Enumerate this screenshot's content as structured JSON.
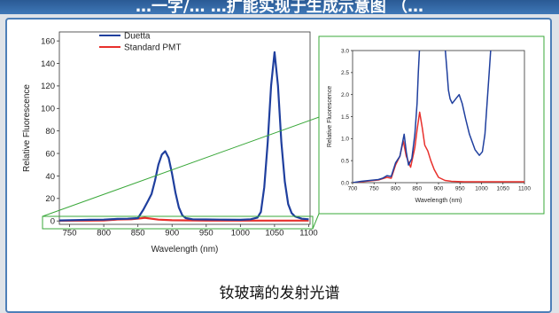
{
  "header": {
    "title_fragment": "…一字/…   …扩能实现于生成示意图 （…"
  },
  "caption": "钕玻璃的发射光谱",
  "chart_data": [
    {
      "type": "line",
      "xlabel": "Wavelength (nm)",
      "ylabel": "Relative Fluorescence",
      "xlim": [
        735,
        1102
      ],
      "ylim": [
        -3,
        168
      ],
      "x_ticks": [
        750,
        800,
        850,
        900,
        950,
        1000,
        1050,
        1100
      ],
      "y_ticks": [
        0,
        20,
        40,
        60,
        80,
        100,
        120,
        140,
        160
      ],
      "legend_position": "top-left",
      "series": [
        {
          "name": "Duetta",
          "color": "#1f3f9e",
          "x": [
            735,
            760,
            780,
            800,
            820,
            835,
            850,
            858,
            865,
            870,
            875,
            880,
            885,
            890,
            895,
            900,
            905,
            910,
            915,
            920,
            930,
            950,
            970,
            1000,
            1015,
            1025,
            1030,
            1035,
            1040,
            1045,
            1050,
            1055,
            1060,
            1065,
            1070,
            1075,
            1080,
            1090,
            1100
          ],
          "values": [
            0.5,
            0.8,
            1.0,
            1.2,
            1.8,
            2.0,
            2.5,
            10,
            18,
            24,
            36,
            50,
            59,
            62,
            56,
            42,
            25,
            12,
            5,
            2.5,
            1.5,
            1.3,
            1.2,
            1.0,
            1.5,
            3,
            8,
            30,
            70,
            120,
            150,
            120,
            70,
            35,
            15,
            7,
            4,
            2,
            1.5
          ]
        },
        {
          "name": "Standard PMT",
          "color": "#e8302c",
          "x": [
            735,
            780,
            800,
            815,
            820,
            840,
            855,
            860,
            870,
            880,
            900,
            950,
            1000,
            1100
          ],
          "values": [
            0.2,
            0.3,
            0.5,
            1.0,
            1.3,
            1.5,
            2.4,
            2.8,
            2.0,
            1.2,
            0.6,
            0.3,
            0.3,
            0.3
          ]
        }
      ]
    },
    {
      "type": "line",
      "xlabel": "Wavelength (nm)",
      "ylabel": "Relative Fluorescence",
      "xlim": [
        700,
        1100
      ],
      "ylim": [
        0,
        3.0
      ],
      "x_ticks": [
        700,
        750,
        800,
        850,
        900,
        950,
        1000,
        1050,
        1100
      ],
      "y_ticks": [
        0.0,
        0.5,
        1.0,
        1.5,
        2.0,
        2.5,
        3.0
      ],
      "series": [
        {
          "color": "#1f3f9e",
          "x": [
            700,
            720,
            740,
            760,
            770,
            780,
            790,
            800,
            810,
            815,
            820,
            825,
            830,
            838,
            845,
            850,
            853,
            856,
            875,
            900,
            915,
            920,
            923,
            927,
            932,
            940,
            948,
            955,
            963,
            972,
            985,
            995,
            1002,
            1008,
            1013,
            1018,
            1022
          ],
          "values": [
            0.0,
            0.03,
            0.05,
            0.07,
            0.1,
            0.16,
            0.14,
            0.45,
            0.6,
            0.85,
            1.1,
            0.7,
            0.4,
            0.55,
            1.1,
            1.8,
            2.5,
            3.1,
            3.1,
            3.1,
            3.1,
            2.5,
            2.1,
            1.9,
            1.8,
            1.9,
            2.0,
            1.8,
            1.45,
            1.1,
            0.75,
            0.62,
            0.7,
            1.1,
            1.8,
            2.5,
            3.1
          ]
        },
        {
          "color": "#e8302c",
          "x": [
            700,
            760,
            780,
            790,
            800,
            810,
            818,
            825,
            835,
            845,
            850,
            856,
            862,
            868,
            875,
            882,
            890,
            900,
            915,
            930,
            960,
            1000,
            1100
          ],
          "values": [
            0.0,
            0.06,
            0.12,
            0.1,
            0.4,
            0.6,
            0.95,
            0.6,
            0.35,
            0.8,
            1.2,
            1.6,
            1.25,
            0.85,
            0.72,
            0.5,
            0.3,
            0.12,
            0.05,
            0.03,
            0.02,
            0.02,
            0.02
          ]
        }
      ]
    }
  ]
}
